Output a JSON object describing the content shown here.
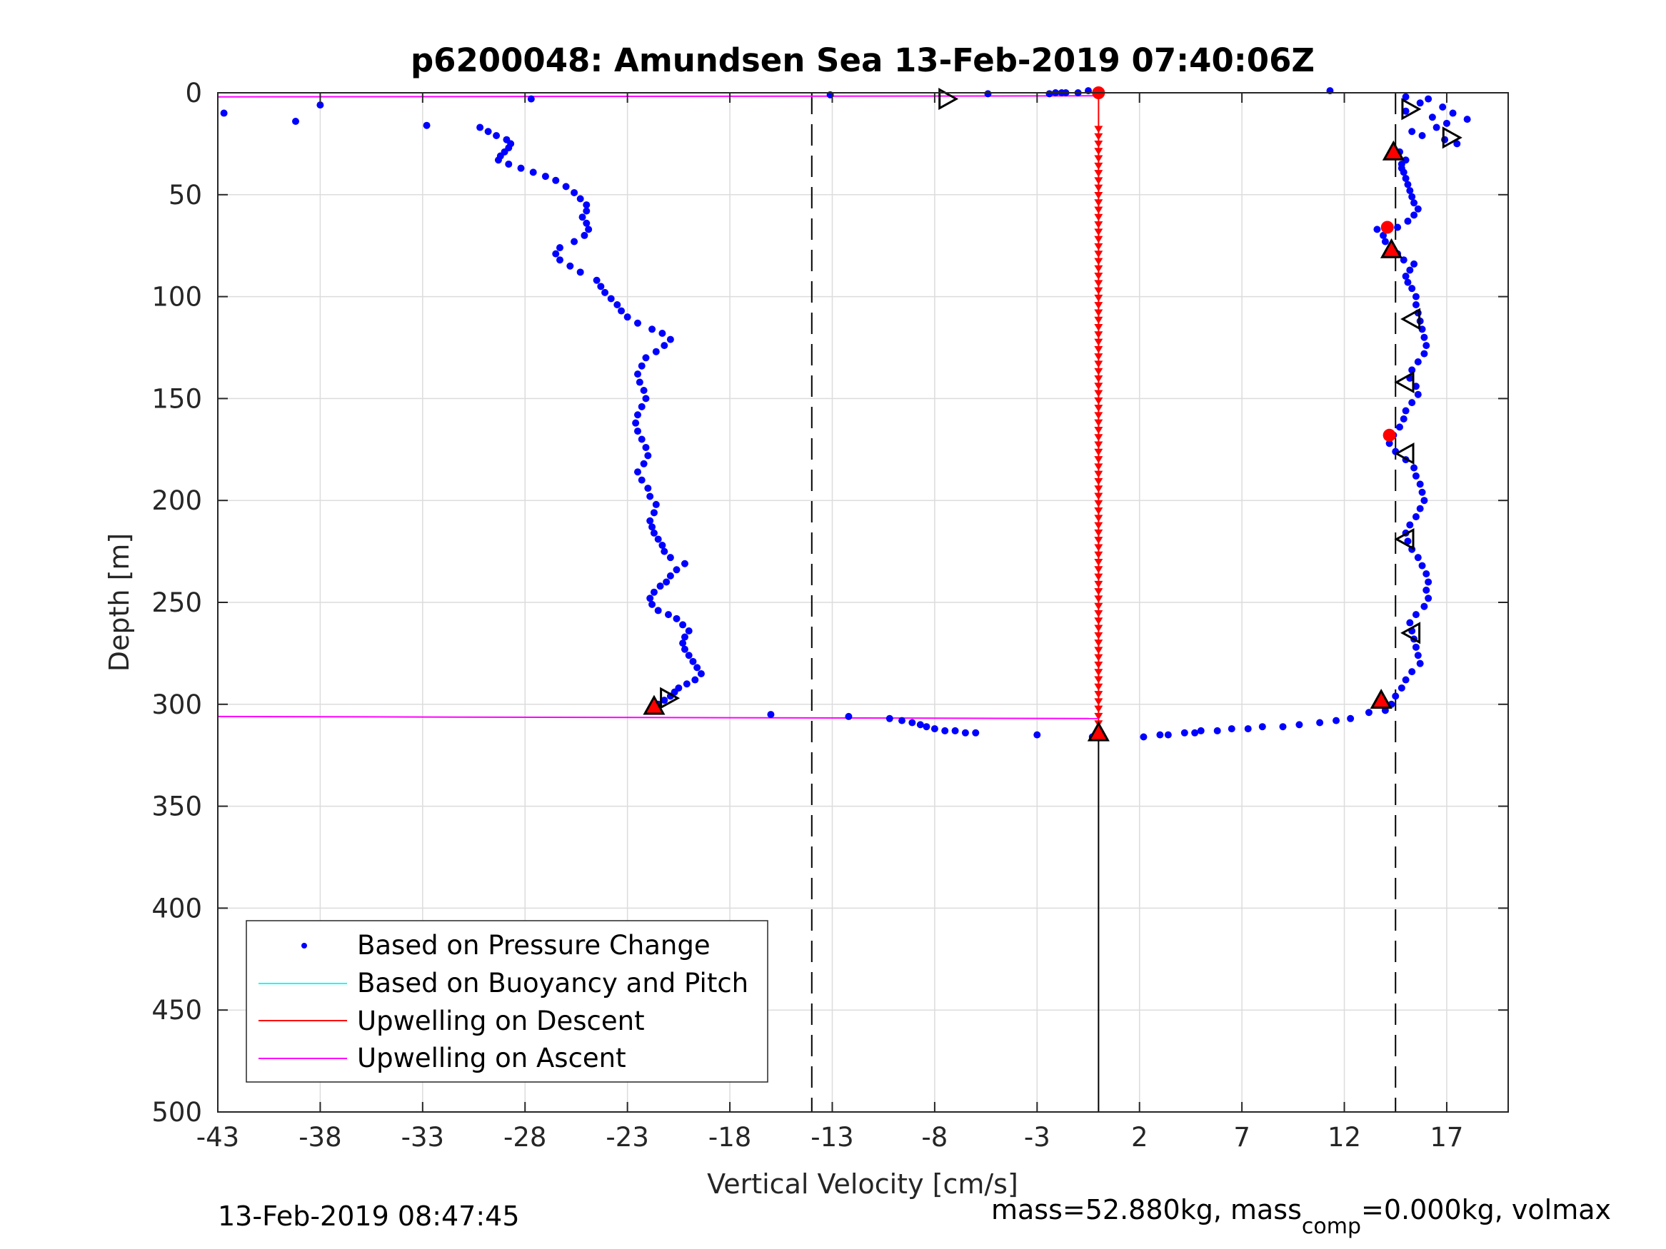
{
  "chart_data": {
    "type": "scatter",
    "title": "p6200048: Amundsen Sea 13-Feb-2019 07:40:06Z",
    "xlabel": "Vertical Velocity [cm/s]",
    "ylabel": "Depth [m]",
    "xlim": [
      -43,
      20
    ],
    "ylim": [
      0,
      500
    ],
    "y_reversed": true,
    "grid": true,
    "legend_position": "bottom-left",
    "xticks": [
      "-43",
      "-38",
      "-33",
      "-28",
      "-23",
      "-18",
      "-13",
      "-8",
      "-3",
      "2",
      "7",
      "12",
      "17"
    ],
    "xtick_values": [
      -43,
      -38,
      -33,
      -28,
      -23,
      -18,
      -13,
      -8,
      -3,
      2,
      7,
      12,
      17
    ],
    "yticks": [
      "0",
      "50",
      "100",
      "150",
      "200",
      "250",
      "300",
      "350",
      "400",
      "450",
      "500"
    ],
    "ytick_values": [
      0,
      50,
      100,
      150,
      200,
      250,
      300,
      350,
      400,
      450,
      500
    ],
    "colors": {
      "pressure": "#0000ff",
      "buoyancy": "#00ffff",
      "upwelling_descent": "#ff0000",
      "upwelling_ascent": "#ff00ff",
      "axis": "#262626",
      "grid": "#dcdcdc"
    },
    "legend": [
      {
        "name": "Based on Pressure Change",
        "marker": "dot",
        "color": "#0000ff"
      },
      {
        "name": "Based on Buoyancy and Pitch",
        "marker": "line",
        "color": "#00ffff"
      },
      {
        "name": "Upwelling on Descent",
        "marker": "line",
        "color": "#ff0000"
      },
      {
        "name": "Upwelling on Ascent",
        "marker": "line",
        "color": "#ff00ff"
      }
    ],
    "reference_lines_x": [
      -14,
      14.5
    ],
    "zero_line": {
      "x": 0,
      "y_from": 316,
      "y_to": 500
    },
    "series": [
      {
        "name": "Based on Pressure Change",
        "segment": "ascent",
        "points": [
          [
            -21.5,
            300
          ],
          [
            -21.2,
            298
          ],
          [
            -20.9,
            296
          ],
          [
            -20.7,
            294
          ],
          [
            -20.5,
            292
          ],
          [
            -20.1,
            290
          ],
          [
            -19.7,
            288
          ],
          [
            -19.4,
            285
          ],
          [
            -19.6,
            282
          ],
          [
            -19.8,
            279
          ],
          [
            -20.0,
            276
          ],
          [
            -20.2,
            273
          ],
          [
            -20.3,
            270
          ],
          [
            -20.2,
            267
          ],
          [
            -20.0,
            264
          ],
          [
            -20.3,
            261
          ],
          [
            -20.6,
            258
          ],
          [
            -21.0,
            256
          ],
          [
            -21.5,
            254
          ],
          [
            -21.8,
            251
          ],
          [
            -21.9,
            248
          ],
          [
            -21.7,
            245
          ],
          [
            -21.4,
            242
          ],
          [
            -21.1,
            240
          ],
          [
            -20.9,
            237
          ],
          [
            -20.6,
            234
          ],
          [
            -20.2,
            231
          ],
          [
            -20.9,
            228
          ],
          [
            -21.2,
            225
          ],
          [
            -21.3,
            222
          ],
          [
            -21.5,
            219
          ],
          [
            -21.7,
            216
          ],
          [
            -21.8,
            213
          ],
          [
            -21.9,
            210
          ],
          [
            -21.7,
            206
          ],
          [
            -21.6,
            202
          ],
          [
            -21.9,
            198
          ],
          [
            -22.0,
            194
          ],
          [
            -22.3,
            190
          ],
          [
            -22.5,
            186
          ],
          [
            -22.2,
            182
          ],
          [
            -22.0,
            178
          ],
          [
            -22.1,
            174
          ],
          [
            -22.3,
            170
          ],
          [
            -22.5,
            166
          ],
          [
            -22.6,
            162
          ],
          [
            -22.5,
            158
          ],
          [
            -22.3,
            154
          ],
          [
            -22.1,
            150
          ],
          [
            -22.2,
            146
          ],
          [
            -22.4,
            142
          ],
          [
            -22.5,
            138
          ],
          [
            -22.3,
            134
          ],
          [
            -22.1,
            130
          ],
          [
            -21.6,
            127
          ],
          [
            -21.2,
            124
          ],
          [
            -20.9,
            121
          ],
          [
            -21.3,
            118
          ],
          [
            -21.8,
            116
          ],
          [
            -22.5,
            113
          ],
          [
            -23.0,
            110
          ],
          [
            -23.3,
            107
          ],
          [
            -23.5,
            104
          ],
          [
            -23.8,
            101
          ],
          [
            -24.1,
            98
          ],
          [
            -24.3,
            95
          ],
          [
            -24.5,
            92
          ],
          [
            -25.3,
            88
          ],
          [
            -25.8,
            85
          ],
          [
            -26.3,
            82
          ],
          [
            -26.5,
            79
          ],
          [
            -26.3,
            76
          ],
          [
            -25.6,
            73
          ],
          [
            -25.1,
            70
          ],
          [
            -24.9,
            67
          ],
          [
            -25.0,
            64
          ],
          [
            -25.2,
            61
          ],
          [
            -25.0,
            58
          ],
          [
            -25.0,
            55
          ],
          [
            -25.3,
            52
          ],
          [
            -25.6,
            49
          ],
          [
            -26.0,
            46
          ],
          [
            -26.5,
            43
          ],
          [
            -27.0,
            41
          ],
          [
            -27.6,
            39
          ],
          [
            -28.2,
            37
          ],
          [
            -28.8,
            35
          ],
          [
            -29.3,
            33
          ],
          [
            -29.2,
            31
          ],
          [
            -29.0,
            29
          ],
          [
            -28.8,
            27
          ],
          [
            -28.7,
            25
          ],
          [
            -28.9,
            23
          ],
          [
            -29.4,
            21
          ],
          [
            -29.8,
            19
          ],
          [
            -30.2,
            17
          ],
          [
            -32.8,
            16
          ],
          [
            -39.2,
            14
          ],
          [
            -38.0,
            6
          ],
          [
            -42.7,
            10
          ],
          [
            -27.7,
            3
          ],
          [
            -13.1,
            1
          ],
          [
            -5.4,
            0.5
          ],
          [
            -2.4,
            0.5
          ],
          [
            -2.1,
            0
          ],
          [
            -1.6,
            0
          ],
          [
            -1.0,
            0
          ],
          [
            -0.5,
            -1
          ],
          [
            -1.8,
            0
          ]
        ]
      },
      {
        "name": "Based on Pressure Change",
        "segment": "bottom",
        "points": [
          [
            -16.0,
            305
          ],
          [
            -12.2,
            306
          ],
          [
            -10.2,
            307
          ],
          [
            -9.6,
            308
          ],
          [
            -9.1,
            309
          ],
          [
            -8.7,
            310
          ],
          [
            -8.4,
            311
          ],
          [
            -8.0,
            312
          ],
          [
            -7.5,
            313
          ],
          [
            -7.0,
            313
          ],
          [
            -6.5,
            314
          ],
          [
            -6.0,
            314
          ],
          [
            -3.0,
            315
          ],
          [
            -0.3,
            316
          ],
          [
            0.1,
            316
          ]
        ]
      },
      {
        "name": "Based on Pressure Change",
        "segment": "descent",
        "points": [
          [
            11.3,
            -1
          ],
          [
            15.0,
            2
          ],
          [
            16.1,
            3
          ],
          [
            15.7,
            5
          ],
          [
            16.8,
            7
          ],
          [
            15.0,
            9
          ],
          [
            17.3,
            10
          ],
          [
            16.3,
            12
          ],
          [
            18.0,
            13
          ],
          [
            17.0,
            15
          ],
          [
            16.5,
            17
          ],
          [
            15.3,
            19
          ],
          [
            15.8,
            21
          ],
          [
            16.9,
            23
          ],
          [
            17.5,
            25
          ],
          [
            14.4,
            27
          ],
          [
            14.7,
            29
          ],
          [
            14.4,
            31
          ],
          [
            15.0,
            33
          ],
          [
            14.8,
            35
          ],
          [
            14.8,
            37
          ],
          [
            14.9,
            39
          ],
          [
            15.0,
            42
          ],
          [
            15.1,
            45
          ],
          [
            15.2,
            48
          ],
          [
            15.3,
            51
          ],
          [
            15.4,
            54
          ],
          [
            15.6,
            57
          ],
          [
            15.4,
            60
          ],
          [
            15.1,
            63
          ],
          [
            14.6,
            66
          ],
          [
            13.6,
            67
          ],
          [
            13.9,
            70
          ],
          [
            14.0,
            73
          ],
          [
            14.3,
            76
          ],
          [
            14.6,
            79
          ],
          [
            14.9,
            82
          ],
          [
            15.4,
            84
          ],
          [
            15.2,
            87
          ],
          [
            15.0,
            90
          ],
          [
            15.1,
            93
          ],
          [
            15.3,
            96
          ],
          [
            15.5,
            100
          ],
          [
            15.5,
            104
          ],
          [
            15.6,
            108
          ],
          [
            15.7,
            112
          ],
          [
            15.8,
            116
          ],
          [
            15.9,
            120
          ],
          [
            16.0,
            124
          ],
          [
            15.9,
            128
          ],
          [
            15.6,
            132
          ],
          [
            15.3,
            136
          ],
          [
            15.2,
            140
          ],
          [
            15.5,
            144
          ],
          [
            15.6,
            148
          ],
          [
            15.3,
            152
          ],
          [
            15.0,
            156
          ],
          [
            14.9,
            160
          ],
          [
            14.7,
            164
          ],
          [
            14.4,
            168
          ],
          [
            14.2,
            172
          ],
          [
            14.5,
            176
          ],
          [
            15.0,
            180
          ],
          [
            15.4,
            184
          ],
          [
            15.5,
            188
          ],
          [
            15.7,
            192
          ],
          [
            15.8,
            196
          ],
          [
            15.9,
            200
          ],
          [
            15.7,
            204
          ],
          [
            15.5,
            208
          ],
          [
            15.2,
            212
          ],
          [
            15.0,
            216
          ],
          [
            15.1,
            220
          ],
          [
            15.3,
            224
          ],
          [
            15.6,
            228
          ],
          [
            15.8,
            232
          ],
          [
            16.0,
            236
          ],
          [
            16.1,
            240
          ],
          [
            16.0,
            244
          ],
          [
            16.1,
            248
          ],
          [
            15.9,
            252
          ],
          [
            15.5,
            256
          ],
          [
            15.2,
            260
          ],
          [
            15.3,
            264
          ],
          [
            15.4,
            268
          ],
          [
            15.5,
            272
          ],
          [
            15.6,
            276
          ],
          [
            15.7,
            280
          ],
          [
            15.3,
            284
          ],
          [
            15.0,
            288
          ],
          [
            14.8,
            292
          ],
          [
            14.5,
            296
          ],
          [
            14.3,
            300
          ],
          [
            14.0,
            303
          ],
          [
            13.2,
            304
          ],
          [
            12.3,
            307
          ],
          [
            11.6,
            308
          ],
          [
            10.8,
            309
          ],
          [
            9.8,
            310
          ],
          [
            9.0,
            311
          ],
          [
            8.0,
            311
          ],
          [
            7.3,
            312
          ],
          [
            6.5,
            312
          ],
          [
            5.8,
            313
          ],
          [
            5.0,
            313
          ],
          [
            4.7,
            314
          ],
          [
            4.2,
            314
          ],
          [
            3.4,
            315
          ],
          [
            3.0,
            315
          ],
          [
            2.2,
            316
          ]
        ]
      }
    ],
    "upwelling_descent": {
      "x": 0,
      "depth_from": 2,
      "depth_to": 310
    },
    "upwelling_ascent": [
      {
        "x1": -43,
        "y1": 2,
        "x2": 0,
        "y2": 1.5
      },
      {
        "x1": -43,
        "y1": 306,
        "x2": 0,
        "y2": 307
      }
    ],
    "triangle_markers": [
      {
        "x": -7.4,
        "y": 3,
        "dir": "right",
        "fill": "none"
      },
      {
        "x": 15.2,
        "y": 8,
        "dir": "right",
        "fill": "none"
      },
      {
        "x": 17.2,
        "y": 22,
        "dir": "right",
        "fill": "none"
      },
      {
        "x": 14.4,
        "y": 29,
        "dir": "up",
        "fill": "#ff0000"
      },
      {
        "x": 14.3,
        "y": 77,
        "dir": "up",
        "fill": "#ff0000"
      },
      {
        "x": 15.3,
        "y": 111,
        "dir": "left",
        "fill": "none"
      },
      {
        "x": 15.0,
        "y": 142,
        "dir": "left",
        "fill": "none"
      },
      {
        "x": 15.0,
        "y": 177,
        "dir": "left",
        "fill": "none"
      },
      {
        "x": 15.0,
        "y": 219,
        "dir": "left",
        "fill": "none"
      },
      {
        "x": 15.3,
        "y": 265,
        "dir": "left",
        "fill": "none"
      },
      {
        "x": 13.8,
        "y": 298,
        "dir": "up",
        "fill": "#ff0000"
      },
      {
        "x": -21.0,
        "y": 297,
        "dir": "right",
        "fill": "none"
      },
      {
        "x": -21.7,
        "y": 301,
        "dir": "up",
        "fill": "#ff0000"
      },
      {
        "x": 0,
        "y": 314,
        "dir": "up",
        "fill": "#ff0000"
      }
    ],
    "red_dots": [
      {
        "x": 14.1,
        "y": 66
      },
      {
        "x": 14.2,
        "y": 168
      },
      {
        "x": 0,
        "y": 0
      }
    ]
  },
  "footer": {
    "timestamp": "13-Feb-2019 08:47:45",
    "mass_text": "mass=52.880kg, mass",
    "mass_sub": "comp",
    "mass_tail": "=0.000kg, volmax"
  }
}
